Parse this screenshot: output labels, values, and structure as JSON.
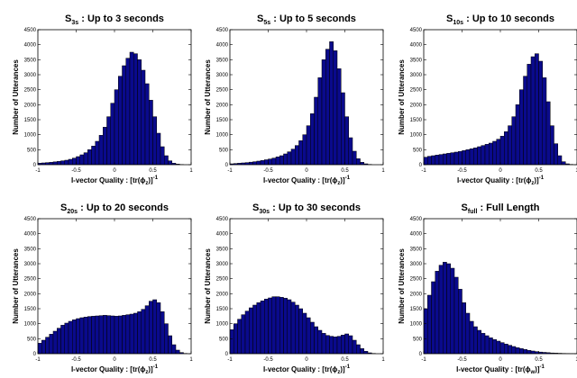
{
  "chart_data": [
    {
      "type": "bar",
      "title_main": "S",
      "title_sub": "3s",
      "title_rest": " : Up to 3 seconds",
      "xlabel_prefix": "I-vector Quality : [tr(",
      "xlabel_phi": "ϕ",
      "xlabel_sub": "z",
      "xlabel_suffix": ")]",
      "xlabel_sup": "-1",
      "ylabel": "Number of Utterances",
      "xlim": [
        -1,
        1
      ],
      "ylim": [
        0,
        4500
      ],
      "xticks": [
        "-1",
        "-0.5",
        "0",
        "0.5",
        "1"
      ],
      "yticks": [
        "0",
        "500",
        "1000",
        "1500",
        "2000",
        "2500",
        "3000",
        "3500",
        "4000",
        "4500"
      ],
      "bar_color": "#0a0a8c",
      "x": [
        -0.975,
        -0.925,
        -0.875,
        -0.825,
        -0.775,
        -0.725,
        -0.675,
        -0.625,
        -0.575,
        -0.525,
        -0.475,
        -0.425,
        -0.375,
        -0.325,
        -0.275,
        -0.225,
        -0.175,
        -0.125,
        -0.075,
        -0.025,
        0.025,
        0.075,
        0.125,
        0.175,
        0.225,
        0.275,
        0.325,
        0.375,
        0.425,
        0.475,
        0.525,
        0.575,
        0.625,
        0.675,
        0.725,
        0.775,
        0.825,
        0.875,
        0.925,
        0.975
      ],
      "values": [
        50,
        60,
        70,
        80,
        95,
        110,
        130,
        150,
        180,
        220,
        270,
        330,
        400,
        500,
        620,
        780,
        980,
        1250,
        1600,
        2050,
        2500,
        2950,
        3300,
        3550,
        3750,
        3700,
        3500,
        3150,
        2700,
        2150,
        1600,
        1050,
        600,
        300,
        130,
        50,
        20,
        8,
        0,
        0
      ]
    },
    {
      "type": "bar",
      "title_main": "S",
      "title_sub": "5s",
      "title_rest": " : Up to 5 seconds",
      "xlabel_prefix": "I-vector Quality : [tr(",
      "xlabel_phi": "ϕ",
      "xlabel_sub": "z",
      "xlabel_suffix": ")]",
      "xlabel_sup": "-1",
      "ylabel": "Number of Utterances",
      "xlim": [
        -1,
        1
      ],
      "ylim": [
        0,
        4500
      ],
      "xticks": [
        "-1",
        "-0.5",
        "0",
        "0.5",
        "1"
      ],
      "yticks": [
        "0",
        "500",
        "1000",
        "1500",
        "2000",
        "2500",
        "3000",
        "3500",
        "4000",
        "4500"
      ],
      "bar_color": "#0a0a8c",
      "x": [
        -0.975,
        -0.925,
        -0.875,
        -0.825,
        -0.775,
        -0.725,
        -0.675,
        -0.625,
        -0.575,
        -0.525,
        -0.475,
        -0.425,
        -0.375,
        -0.325,
        -0.275,
        -0.225,
        -0.175,
        -0.125,
        -0.075,
        -0.025,
        0.025,
        0.075,
        0.125,
        0.175,
        0.225,
        0.275,
        0.325,
        0.375,
        0.425,
        0.475,
        0.525,
        0.575,
        0.625,
        0.675,
        0.725,
        0.775,
        0.825,
        0.875,
        0.925,
        0.975
      ],
      "values": [
        30,
        40,
        50,
        60,
        70,
        85,
        100,
        120,
        140,
        165,
        190,
        220,
        260,
        300,
        360,
        430,
        520,
        640,
        800,
        1000,
        1300,
        1700,
        2250,
        2900,
        3500,
        3850,
        4100,
        3800,
        3200,
        2400,
        1600,
        900,
        450,
        200,
        80,
        30,
        10,
        0,
        0,
        0
      ]
    },
    {
      "type": "bar",
      "title_main": "S",
      "title_sub": "10s",
      "title_rest": " : Up to 10 seconds",
      "xlabel_prefix": "I-vector Quality : [tr(",
      "xlabel_phi": "ϕ",
      "xlabel_sub": "z",
      "xlabel_suffix": ")]",
      "xlabel_sup": "-1",
      "ylabel": "Number of Utterances",
      "xlim": [
        -1,
        1
      ],
      "ylim": [
        0,
        4500
      ],
      "xticks": [
        "-1",
        "-0.5",
        "0",
        "0.5",
        "1"
      ],
      "yticks": [
        "0",
        "500",
        "1000",
        "1500",
        "2000",
        "2500",
        "3000",
        "3500",
        "4000",
        "4500"
      ],
      "bar_color": "#0a0a8c",
      "x": [
        -0.975,
        -0.925,
        -0.875,
        -0.825,
        -0.775,
        -0.725,
        -0.675,
        -0.625,
        -0.575,
        -0.525,
        -0.475,
        -0.425,
        -0.375,
        -0.325,
        -0.275,
        -0.225,
        -0.175,
        -0.125,
        -0.075,
        -0.025,
        0.025,
        0.075,
        0.125,
        0.175,
        0.225,
        0.275,
        0.325,
        0.375,
        0.425,
        0.475,
        0.525,
        0.575,
        0.625,
        0.675,
        0.725,
        0.775,
        0.825,
        0.875,
        0.925,
        0.975
      ],
      "values": [
        250,
        280,
        300,
        320,
        340,
        360,
        380,
        400,
        420,
        440,
        470,
        500,
        530,
        560,
        600,
        640,
        680,
        720,
        780,
        850,
        950,
        1100,
        1300,
        1600,
        2000,
        2500,
        2950,
        3350,
        3600,
        3700,
        3450,
        2900,
        2100,
        1300,
        700,
        300,
        100,
        30,
        10,
        0
      ]
    },
    {
      "type": "bar",
      "title_main": "S",
      "title_sub": "20s",
      "title_rest": " : Up to 20 seconds",
      "xlabel_prefix": "I-vector Quality : [tr(",
      "xlabel_phi": "ϕ",
      "xlabel_sub": "z",
      "xlabel_suffix": ")]",
      "xlabel_sup": "-1",
      "ylabel": "Number of Utterances",
      "xlim": [
        -1,
        1
      ],
      "ylim": [
        0,
        4500
      ],
      "xticks": [
        "-1",
        "-0.5",
        "0",
        "0.5",
        "1"
      ],
      "yticks": [
        "0",
        "500",
        "1000",
        "1500",
        "2000",
        "2500",
        "3000",
        "3500",
        "4000",
        "4500"
      ],
      "bar_color": "#0a0a8c",
      "x": [
        -0.975,
        -0.925,
        -0.875,
        -0.825,
        -0.775,
        -0.725,
        -0.675,
        -0.625,
        -0.575,
        -0.525,
        -0.475,
        -0.425,
        -0.375,
        -0.325,
        -0.275,
        -0.225,
        -0.175,
        -0.125,
        -0.075,
        -0.025,
        0.025,
        0.075,
        0.125,
        0.175,
        0.225,
        0.275,
        0.325,
        0.375,
        0.425,
        0.475,
        0.525,
        0.575,
        0.625,
        0.675,
        0.725,
        0.775,
        0.825,
        0.875,
        0.925,
        0.975
      ],
      "values": [
        350,
        450,
        550,
        650,
        750,
        850,
        950,
        1020,
        1080,
        1130,
        1170,
        1200,
        1220,
        1240,
        1250,
        1260,
        1270,
        1280,
        1270,
        1260,
        1250,
        1260,
        1280,
        1300,
        1320,
        1350,
        1400,
        1480,
        1600,
        1750,
        1800,
        1700,
        1400,
        1000,
        600,
        300,
        120,
        40,
        10,
        0
      ]
    },
    {
      "type": "bar",
      "title_main": "S",
      "title_sub": "30s",
      "title_rest": " : Up to 30 seconds",
      "xlabel_prefix": "I-vector Quality : [tr(",
      "xlabel_phi": "ϕ",
      "xlabel_sub": "z",
      "xlabel_suffix": ")]",
      "xlabel_sup": "-1",
      "ylabel": "Number of Utterances",
      "xlim": [
        -1,
        1
      ],
      "ylim": [
        0,
        4500
      ],
      "xticks": [
        "-1",
        "-0.5",
        "0",
        "0.5",
        "1"
      ],
      "yticks": [
        "0",
        "500",
        "1000",
        "1500",
        "2000",
        "2500",
        "3000",
        "3500",
        "4000",
        "4500"
      ],
      "bar_color": "#0a0a8c",
      "x": [
        -0.975,
        -0.925,
        -0.875,
        -0.825,
        -0.775,
        -0.725,
        -0.675,
        -0.625,
        -0.575,
        -0.525,
        -0.475,
        -0.425,
        -0.375,
        -0.325,
        -0.275,
        -0.225,
        -0.175,
        -0.125,
        -0.075,
        -0.025,
        0.025,
        0.075,
        0.125,
        0.175,
        0.225,
        0.275,
        0.325,
        0.375,
        0.425,
        0.475,
        0.525,
        0.575,
        0.625,
        0.675,
        0.725,
        0.775,
        0.825,
        0.875,
        0.925,
        0.975
      ],
      "values": [
        800,
        1000,
        1150,
        1300,
        1420,
        1530,
        1620,
        1700,
        1760,
        1820,
        1860,
        1900,
        1900,
        1880,
        1850,
        1800,
        1720,
        1620,
        1500,
        1350,
        1200,
        1050,
        900,
        780,
        680,
        610,
        580,
        560,
        580,
        620,
        660,
        600,
        450,
        300,
        170,
        80,
        30,
        10,
        0,
        0
      ]
    },
    {
      "type": "bar",
      "title_main": "S",
      "title_sub": "full",
      "title_rest": " : Full Length",
      "xlabel_prefix": "I-vector Quality : [tr(",
      "xlabel_phi": "ϕ",
      "xlabel_sub": "w",
      "xlabel_suffix": ")]",
      "xlabel_sup": "-1",
      "ylabel": "Number of Utterances",
      "xlim": [
        -1,
        1
      ],
      "ylim": [
        0,
        4500
      ],
      "xticks": [
        "-1",
        "-0.5",
        "0",
        "0.5",
        "1"
      ],
      "yticks": [
        "0",
        "500",
        "1000",
        "1500",
        "2000",
        "2500",
        "3000",
        "3500",
        "4000",
        "4500"
      ],
      "bar_color": "#0a0a8c",
      "x": [
        -0.975,
        -0.925,
        -0.875,
        -0.825,
        -0.775,
        -0.725,
        -0.675,
        -0.625,
        -0.575,
        -0.525,
        -0.475,
        -0.425,
        -0.375,
        -0.325,
        -0.275,
        -0.225,
        -0.175,
        -0.125,
        -0.075,
        -0.025,
        0.025,
        0.075,
        0.125,
        0.175,
        0.225,
        0.275,
        0.325,
        0.375,
        0.425,
        0.475,
        0.525,
        0.575,
        0.625,
        0.675,
        0.725,
        0.775,
        0.825,
        0.875,
        0.925,
        0.975
      ],
      "values": [
        1500,
        1950,
        2400,
        2750,
        2950,
        3050,
        3000,
        2850,
        2550,
        2150,
        1700,
        1350,
        1080,
        900,
        780,
        680,
        600,
        530,
        470,
        420,
        370,
        320,
        280,
        240,
        200,
        170,
        140,
        110,
        90,
        70,
        55,
        45,
        35,
        25,
        20,
        15,
        10,
        8,
        5,
        3
      ]
    }
  ]
}
